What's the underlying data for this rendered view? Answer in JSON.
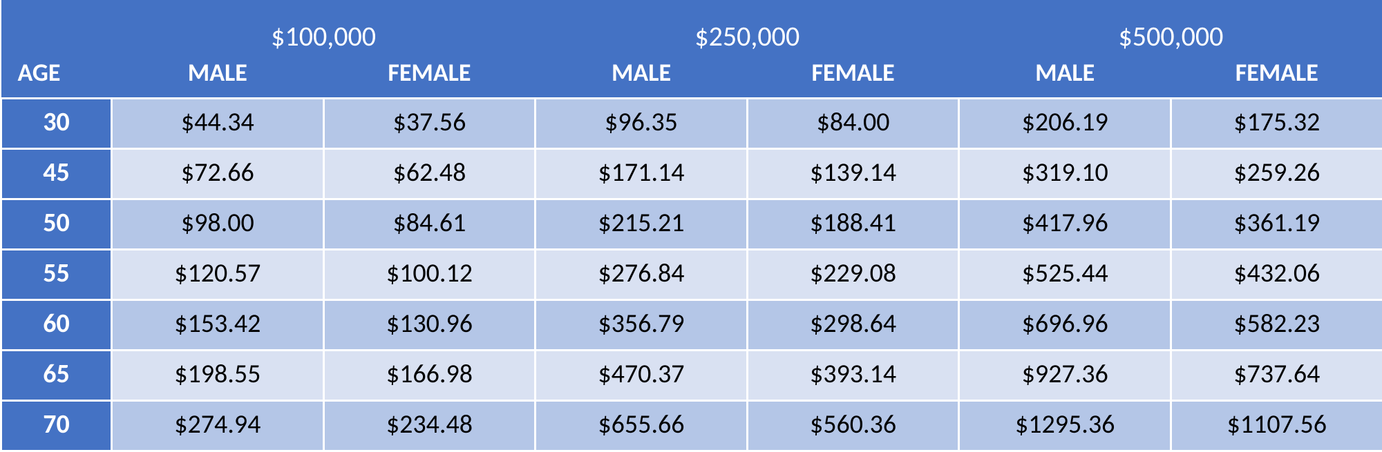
{
  "table": {
    "type": "table",
    "header_bg": "#4472c4",
    "header_fg": "#ffffff",
    "row_band_colors": [
      "#b4c6e7",
      "#d9e1f2"
    ],
    "cell_fg": "#000000",
    "border_color": "#ffffff",
    "age_header": "AGE",
    "amount_groups": [
      {
        "label": "$100,000",
        "sub": [
          "MALE",
          "FEMALE"
        ]
      },
      {
        "label": "$250,000",
        "sub": [
          "MALE",
          "FEMALE"
        ]
      },
      {
        "label": "$500,000",
        "sub": [
          "MALE",
          "FEMALE"
        ]
      }
    ],
    "rows": [
      {
        "age": "30",
        "cells": [
          "$44.34",
          "$37.56",
          "$96.35",
          "$84.00",
          "$206.19",
          "$175.32"
        ]
      },
      {
        "age": "45",
        "cells": [
          "$72.66",
          "$62.48",
          "$171.14",
          "$139.14",
          "$319.10",
          "$259.26"
        ]
      },
      {
        "age": "50",
        "cells": [
          "$98.00",
          "$84.61",
          "$215.21",
          "$188.41",
          "$417.96",
          "$361.19"
        ]
      },
      {
        "age": "55",
        "cells": [
          "$120.57",
          "$100.12",
          "$276.84",
          "$229.08",
          "$525.44",
          "$432.06"
        ]
      },
      {
        "age": "60",
        "cells": [
          "$153.42",
          "$130.96",
          "$356.79",
          "$298.64",
          "$696.96",
          "$582.23"
        ]
      },
      {
        "age": "65",
        "cells": [
          "$198.55",
          "$166.98",
          "$470.37",
          "$393.14",
          "$927.36",
          "$737.64"
        ]
      },
      {
        "age": "70",
        "cells": [
          "$274.94",
          "$234.48",
          "$655.66",
          "$560.36",
          "$1295.36",
          "$1107.56"
        ]
      }
    ],
    "fontsize_amount": 40,
    "fontsize_subheader": 36,
    "fontsize_cell": 38
  }
}
